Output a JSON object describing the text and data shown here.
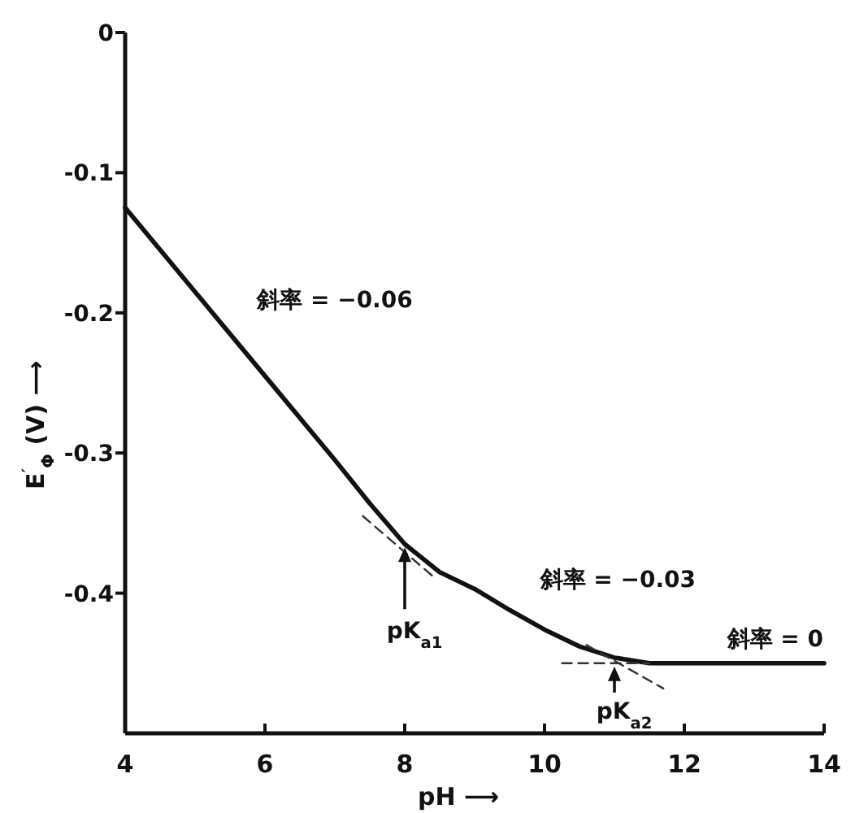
{
  "chart_data": {
    "type": "line",
    "xlabel": "pH ⟶",
    "ylabel": "E$^{′}$$_{Φ}$  (V)  ⟶",
    "xlim": [
      4,
      14
    ],
    "ylim": [
      -0.5,
      0
    ],
    "xticks": [
      4,
      6,
      8,
      10,
      12,
      14
    ],
    "yticks": [
      0,
      -0.1,
      -0.2,
      -0.3,
      -0.4
    ],
    "grid": false,
    "marker": "none",
    "series": [
      {
        "color": "#111111",
        "line_style": "solid",
        "x": [
          4,
          5,
          6,
          7,
          7.5,
          8,
          8.5,
          9,
          9.5,
          10,
          10.5,
          11,
          11.5,
          12,
          13,
          14
        ],
        "values": [
          -0.125,
          -0.185,
          -0.245,
          -0.305,
          -0.336,
          -0.365,
          -0.385,
          -0.397,
          -0.412,
          -0.426,
          -0.438,
          -0.446,
          -0.45,
          -0.45,
          -0.45,
          -0.45
        ]
      },
      {
        "color": "#333333",
        "line_style": "dashed",
        "x": [
          7.4,
          8.45
        ],
        "values": [
          -0.345,
          -0.39
        ]
      },
      {
        "color": "#333333",
        "line_style": "dashed",
        "x": [
          10.6,
          11.7
        ],
        "values": [
          -0.437,
          -0.468
        ]
      },
      {
        "color": "#333333",
        "line_style": "dashed",
        "x": [
          10.25,
          11.5
        ],
        "values": [
          -0.45,
          -0.45
        ]
      }
    ],
    "annotations": [
      "斜率 = −0.06",
      "斜率 = −0.03",
      "斜率 = 0",
      {
        "text": "pK$_{a1}$",
        "x": 8,
        "y": -0.365
      },
      {
        "text": "pK$_{a2}$",
        "x": 11,
        "y": -0.45
      }
    ]
  }
}
